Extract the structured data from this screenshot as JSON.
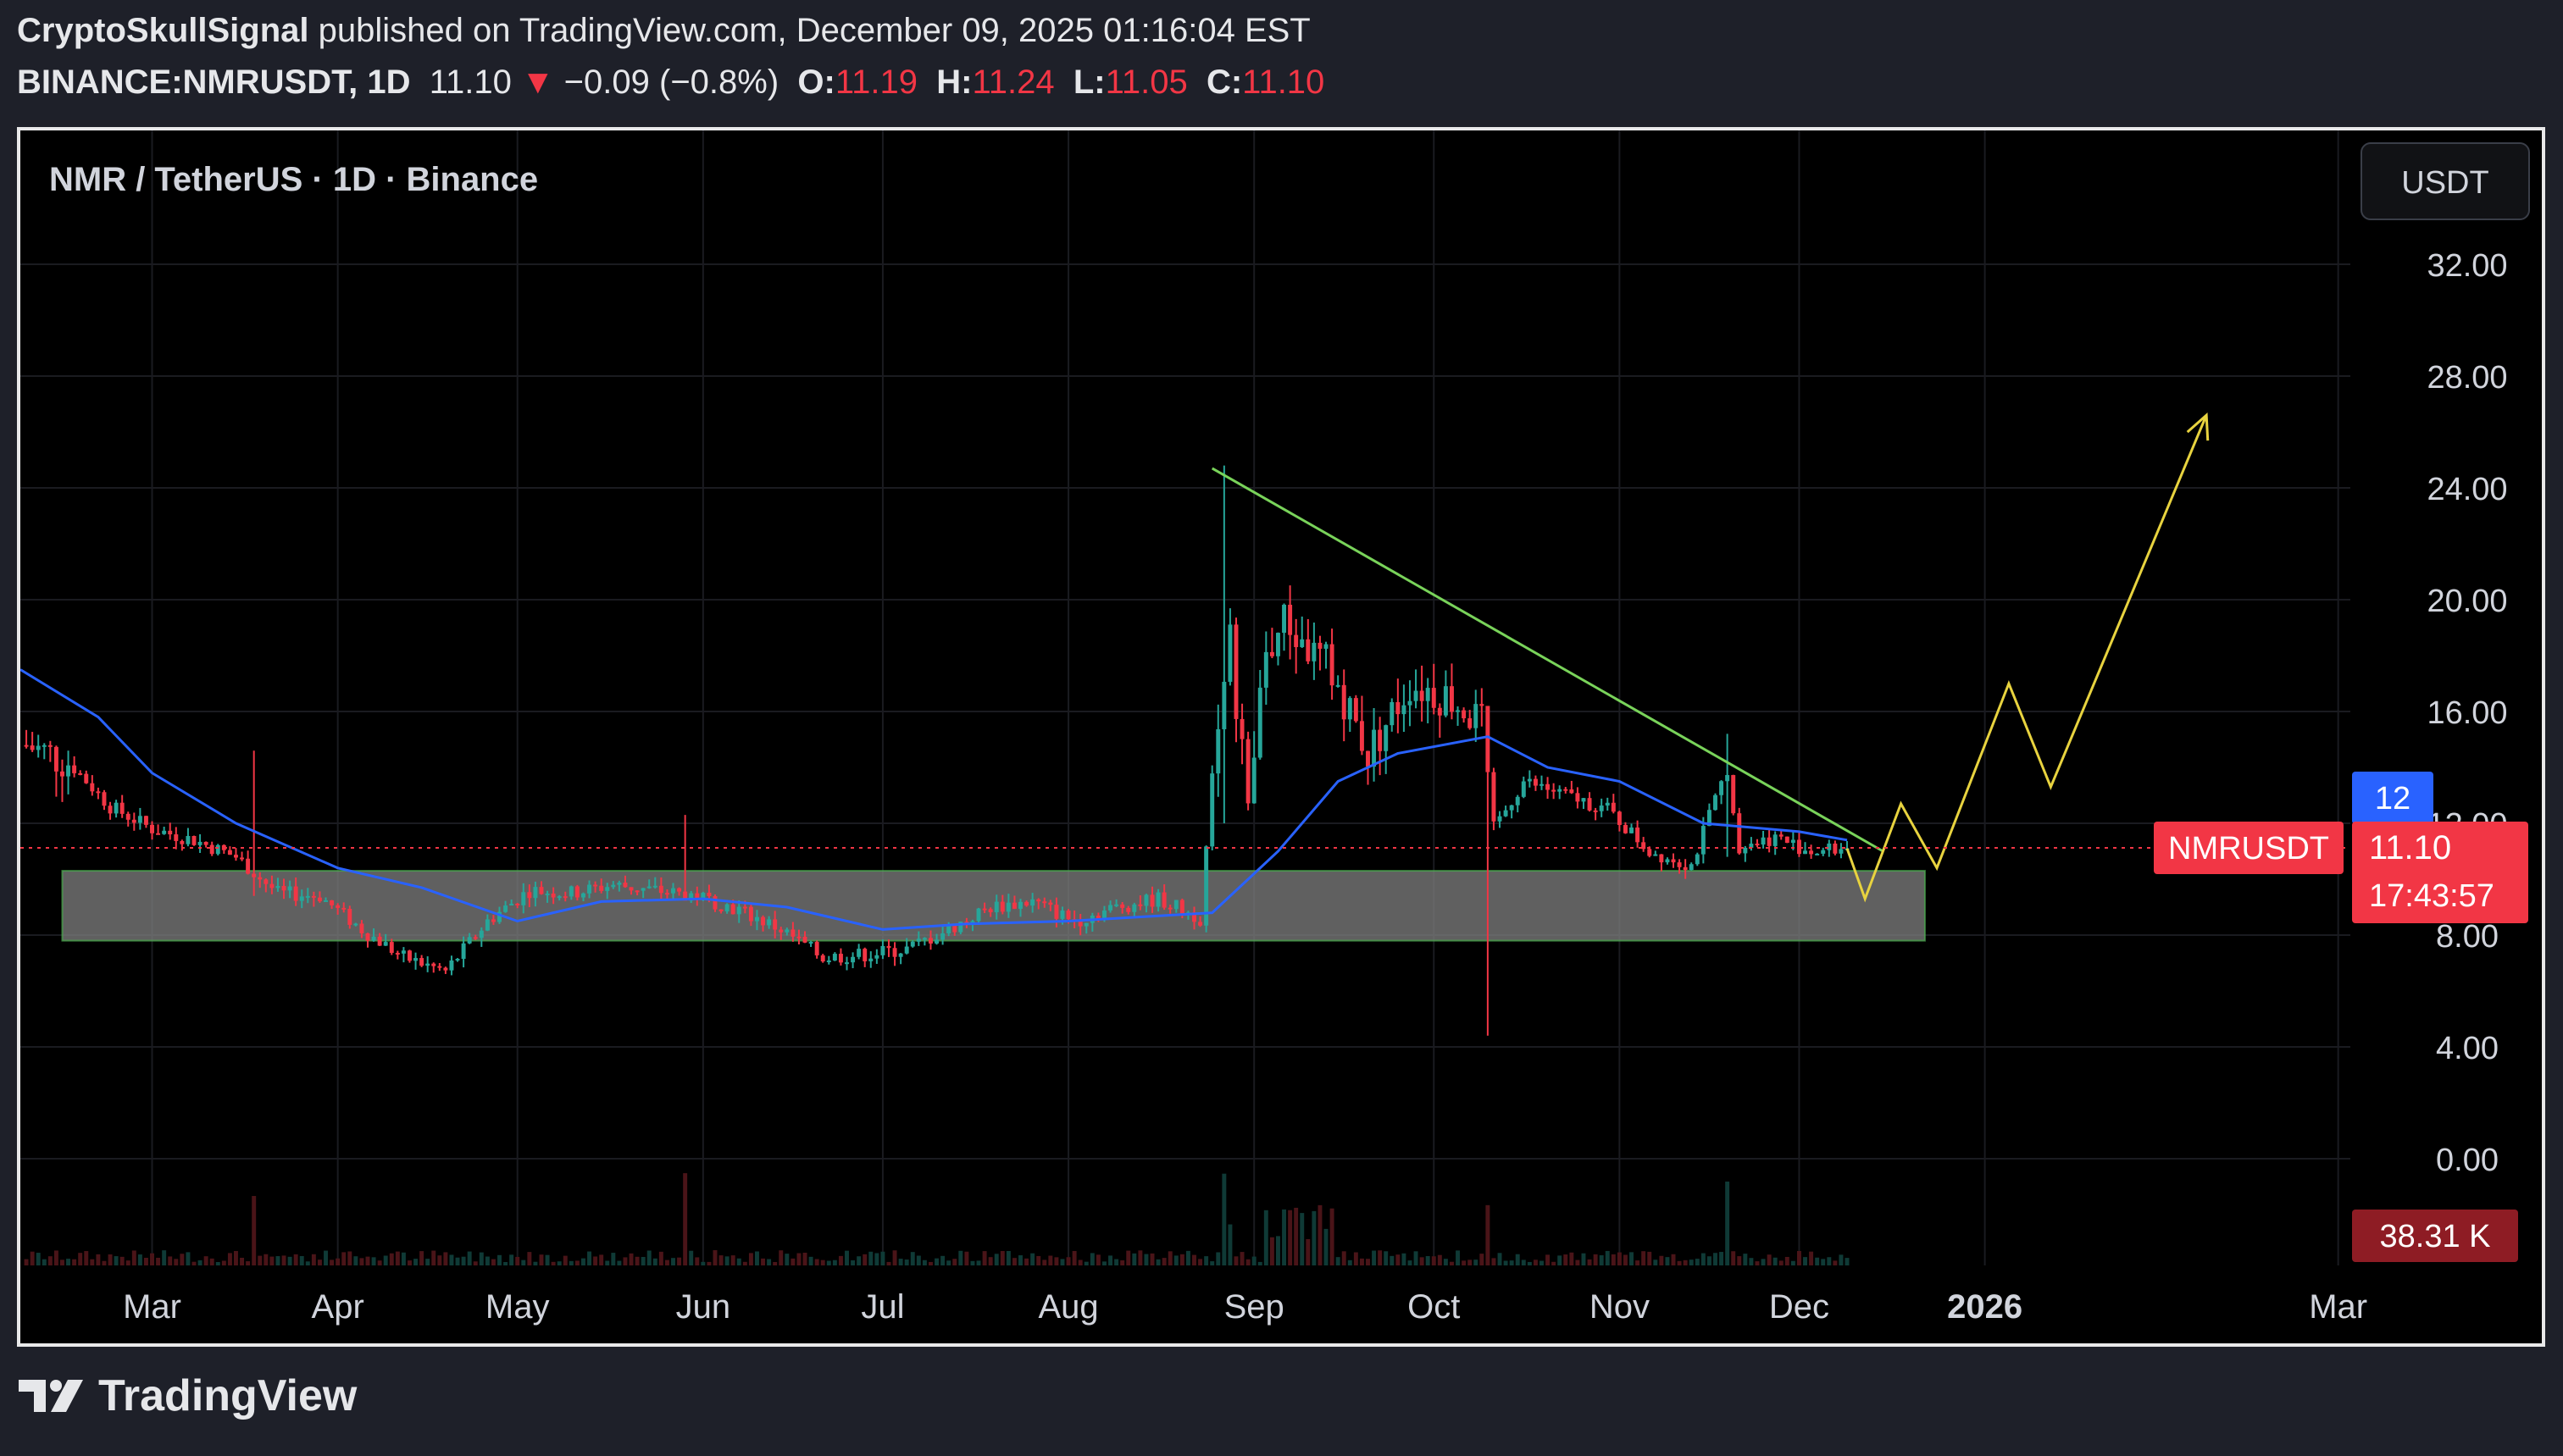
{
  "header": {
    "author": "CryptoSkullSignal",
    "published": "published on TradingView.com, December 09, 2025 01:16:04 EST",
    "symbol": "BINANCE:NMRUSDT, 1D",
    "last": "11.10",
    "change_arrow": "▼",
    "change": "−0.09 (−0.8%)",
    "o_label": "O:",
    "o_value": "11.19",
    "h_label": "H:",
    "h_value": "11.24",
    "l_label": "L:",
    "l_value": "11.05",
    "c_label": "C:",
    "c_value": "11.10"
  },
  "legend": {
    "title": "NMR / TetherUS · 1D · Binance"
  },
  "currency_button": "USDT",
  "price_tag": {
    "name": "NMRUSDT",
    "price": "11.10",
    "countdown": "17:43:57"
  },
  "crosshair_tag": "12",
  "volume_tag": "38.31 K",
  "footer": {
    "brand": "TradingView"
  },
  "colors": {
    "up": "#26a69a",
    "down": "#f23645",
    "ma": "#2962ff",
    "trendline": "#79d35a",
    "projection": "#e8d33f",
    "zone": "#7b7b7b"
  },
  "chart_data": {
    "type": "candlestick",
    "title": "NMR / TetherUS · 1D · Binance",
    "y_ticks": [
      "0.00",
      "4.00",
      "8.00",
      "12.00",
      "16.00",
      "20.00",
      "24.00",
      "28.00",
      "32.00"
    ],
    "ylim": [
      -2.5,
      35
    ],
    "x_ticks": [
      "Mar",
      "Apr",
      "May",
      "Jun",
      "Jul",
      "Aug",
      "Sep",
      "Oct",
      "Nov",
      "Dec",
      "2026",
      "Mar"
    ],
    "x_tick_dates": [
      "2025-03-01",
      "2025-04-01",
      "2025-05-01",
      "2025-06-01",
      "2025-07-01",
      "2025-08-01",
      "2025-09-01",
      "2025-10-01",
      "2025-11-01",
      "2025-12-01",
      "2026-01-01",
      "2026-03-01"
    ],
    "x_range": [
      "2025-02-07",
      "2026-04-04"
    ],
    "price_points": [
      {
        "x": "2025-02-08",
        "y": 14.8
      },
      {
        "x": "2025-02-15",
        "y": 14.2
      },
      {
        "x": "2025-02-22",
        "y": 12.6
      },
      {
        "x": "2025-03-01",
        "y": 11.8
      },
      {
        "x": "2025-03-08",
        "y": 11.4
      },
      {
        "x": "2025-03-15",
        "y": 10.8
      },
      {
        "x": "2025-03-22",
        "y": 9.5
      },
      {
        "x": "2025-03-29",
        "y": 9.4
      },
      {
        "x": "2025-04-05",
        "y": 8.2
      },
      {
        "x": "2025-04-12",
        "y": 7.2
      },
      {
        "x": "2025-04-19",
        "y": 6.7
      },
      {
        "x": "2025-04-26",
        "y": 8.5
      },
      {
        "x": "2025-05-03",
        "y": 9.6
      },
      {
        "x": "2025-05-10",
        "y": 9.5
      },
      {
        "x": "2025-05-17",
        "y": 9.8
      },
      {
        "x": "2025-05-24",
        "y": 9.6
      },
      {
        "x": "2025-05-31",
        "y": 9.4
      },
      {
        "x": "2025-06-07",
        "y": 8.9
      },
      {
        "x": "2025-06-14",
        "y": 8.2
      },
      {
        "x": "2025-06-21",
        "y": 7.2
      },
      {
        "x": "2025-06-28",
        "y": 7.3
      },
      {
        "x": "2025-07-05",
        "y": 7.5
      },
      {
        "x": "2025-07-12",
        "y": 8.2
      },
      {
        "x": "2025-07-19",
        "y": 9.0
      },
      {
        "x": "2025-07-26",
        "y": 9.2
      },
      {
        "x": "2025-08-02",
        "y": 8.5
      },
      {
        "x": "2025-08-09",
        "y": 9.0
      },
      {
        "x": "2025-08-16",
        "y": 9.3
      },
      {
        "x": "2025-08-23",
        "y": 8.6
      },
      {
        "x": "2025-08-26",
        "y": 16.0
      },
      {
        "x": "2025-08-28",
        "y": 18.5
      },
      {
        "x": "2025-08-31",
        "y": 12.5
      },
      {
        "x": "2025-09-03",
        "y": 18.0
      },
      {
        "x": "2025-09-06",
        "y": 19.2
      },
      {
        "x": "2025-09-10",
        "y": 18.2
      },
      {
        "x": "2025-09-14",
        "y": 17.5
      },
      {
        "x": "2025-09-20",
        "y": 14.5
      },
      {
        "x": "2025-09-27",
        "y": 17.0
      },
      {
        "x": "2025-10-04",
        "y": 16.5
      },
      {
        "x": "2025-10-09",
        "y": 15.5
      },
      {
        "x": "2025-10-11",
        "y": 11.8
      },
      {
        "x": "2025-10-16",
        "y": 13.5
      },
      {
        "x": "2025-10-23",
        "y": 13.0
      },
      {
        "x": "2025-10-30",
        "y": 12.5
      },
      {
        "x": "2025-11-06",
        "y": 11.0
      },
      {
        "x": "2025-11-13",
        "y": 10.5
      },
      {
        "x": "2025-11-19",
        "y": 14.0
      },
      {
        "x": "2025-11-21",
        "y": 11.2
      },
      {
        "x": "2025-11-27",
        "y": 11.5
      },
      {
        "x": "2025-12-03",
        "y": 11.0
      },
      {
        "x": "2025-12-09",
        "y": 11.1
      }
    ],
    "moving_average": [
      {
        "x": "2025-02-07",
        "y": 17.5
      },
      {
        "x": "2025-02-20",
        "y": 15.8
      },
      {
        "x": "2025-03-01",
        "y": 13.8
      },
      {
        "x": "2025-03-15",
        "y": 12.0
      },
      {
        "x": "2025-04-01",
        "y": 10.4
      },
      {
        "x": "2025-04-15",
        "y": 9.7
      },
      {
        "x": "2025-05-01",
        "y": 8.5
      },
      {
        "x": "2025-05-15",
        "y": 9.2
      },
      {
        "x": "2025-06-01",
        "y": 9.3
      },
      {
        "x": "2025-06-15",
        "y": 9.0
      },
      {
        "x": "2025-07-01",
        "y": 8.2
      },
      {
        "x": "2025-07-15",
        "y": 8.4
      },
      {
        "x": "2025-08-01",
        "y": 8.5
      },
      {
        "x": "2025-08-25",
        "y": 8.8
      },
      {
        "x": "2025-09-05",
        "y": 11.0
      },
      {
        "x": "2025-09-15",
        "y": 13.5
      },
      {
        "x": "2025-09-25",
        "y": 14.5
      },
      {
        "x": "2025-10-10",
        "y": 15.1
      },
      {
        "x": "2025-10-20",
        "y": 14.0
      },
      {
        "x": "2025-11-01",
        "y": 13.5
      },
      {
        "x": "2025-11-15",
        "y": 12.0
      },
      {
        "x": "2025-12-01",
        "y": 11.7
      },
      {
        "x": "2025-12-09",
        "y": 11.4
      }
    ],
    "spikes": [
      {
        "x": "2025-03-18",
        "high": 14.6,
        "low": 9.4
      },
      {
        "x": "2025-05-29",
        "high": 12.3,
        "low": 9.5
      },
      {
        "x": "2025-08-27",
        "high": 24.8,
        "low": 12.0
      },
      {
        "x": "2025-10-10",
        "high": 15.8,
        "low": 4.4
      },
      {
        "x": "2025-11-19",
        "high": 15.2,
        "low": 10.8
      }
    ],
    "support_zone": {
      "x_start": "2025-02-14",
      "x_end": "2025-12-22",
      "y_low": 7.8,
      "y_high": 10.3
    },
    "trendline": [
      {
        "x": "2025-08-25",
        "y": 24.7
      },
      {
        "x": "2025-12-15",
        "y": 11.0
      }
    ],
    "projection_path": [
      {
        "x": "2025-12-09",
        "y": 11.1
      },
      {
        "x": "2025-12-12",
        "y": 9.3
      },
      {
        "x": "2025-12-18",
        "y": 12.7
      },
      {
        "x": "2025-12-24",
        "y": 10.4
      },
      {
        "x": "2026-01-05",
        "y": 17.0
      },
      {
        "x": "2026-01-12",
        "y": 13.3
      },
      {
        "x": "2026-02-07",
        "y": 26.6
      }
    ],
    "last_price": 11.1,
    "volume_last": "38.31 K"
  }
}
